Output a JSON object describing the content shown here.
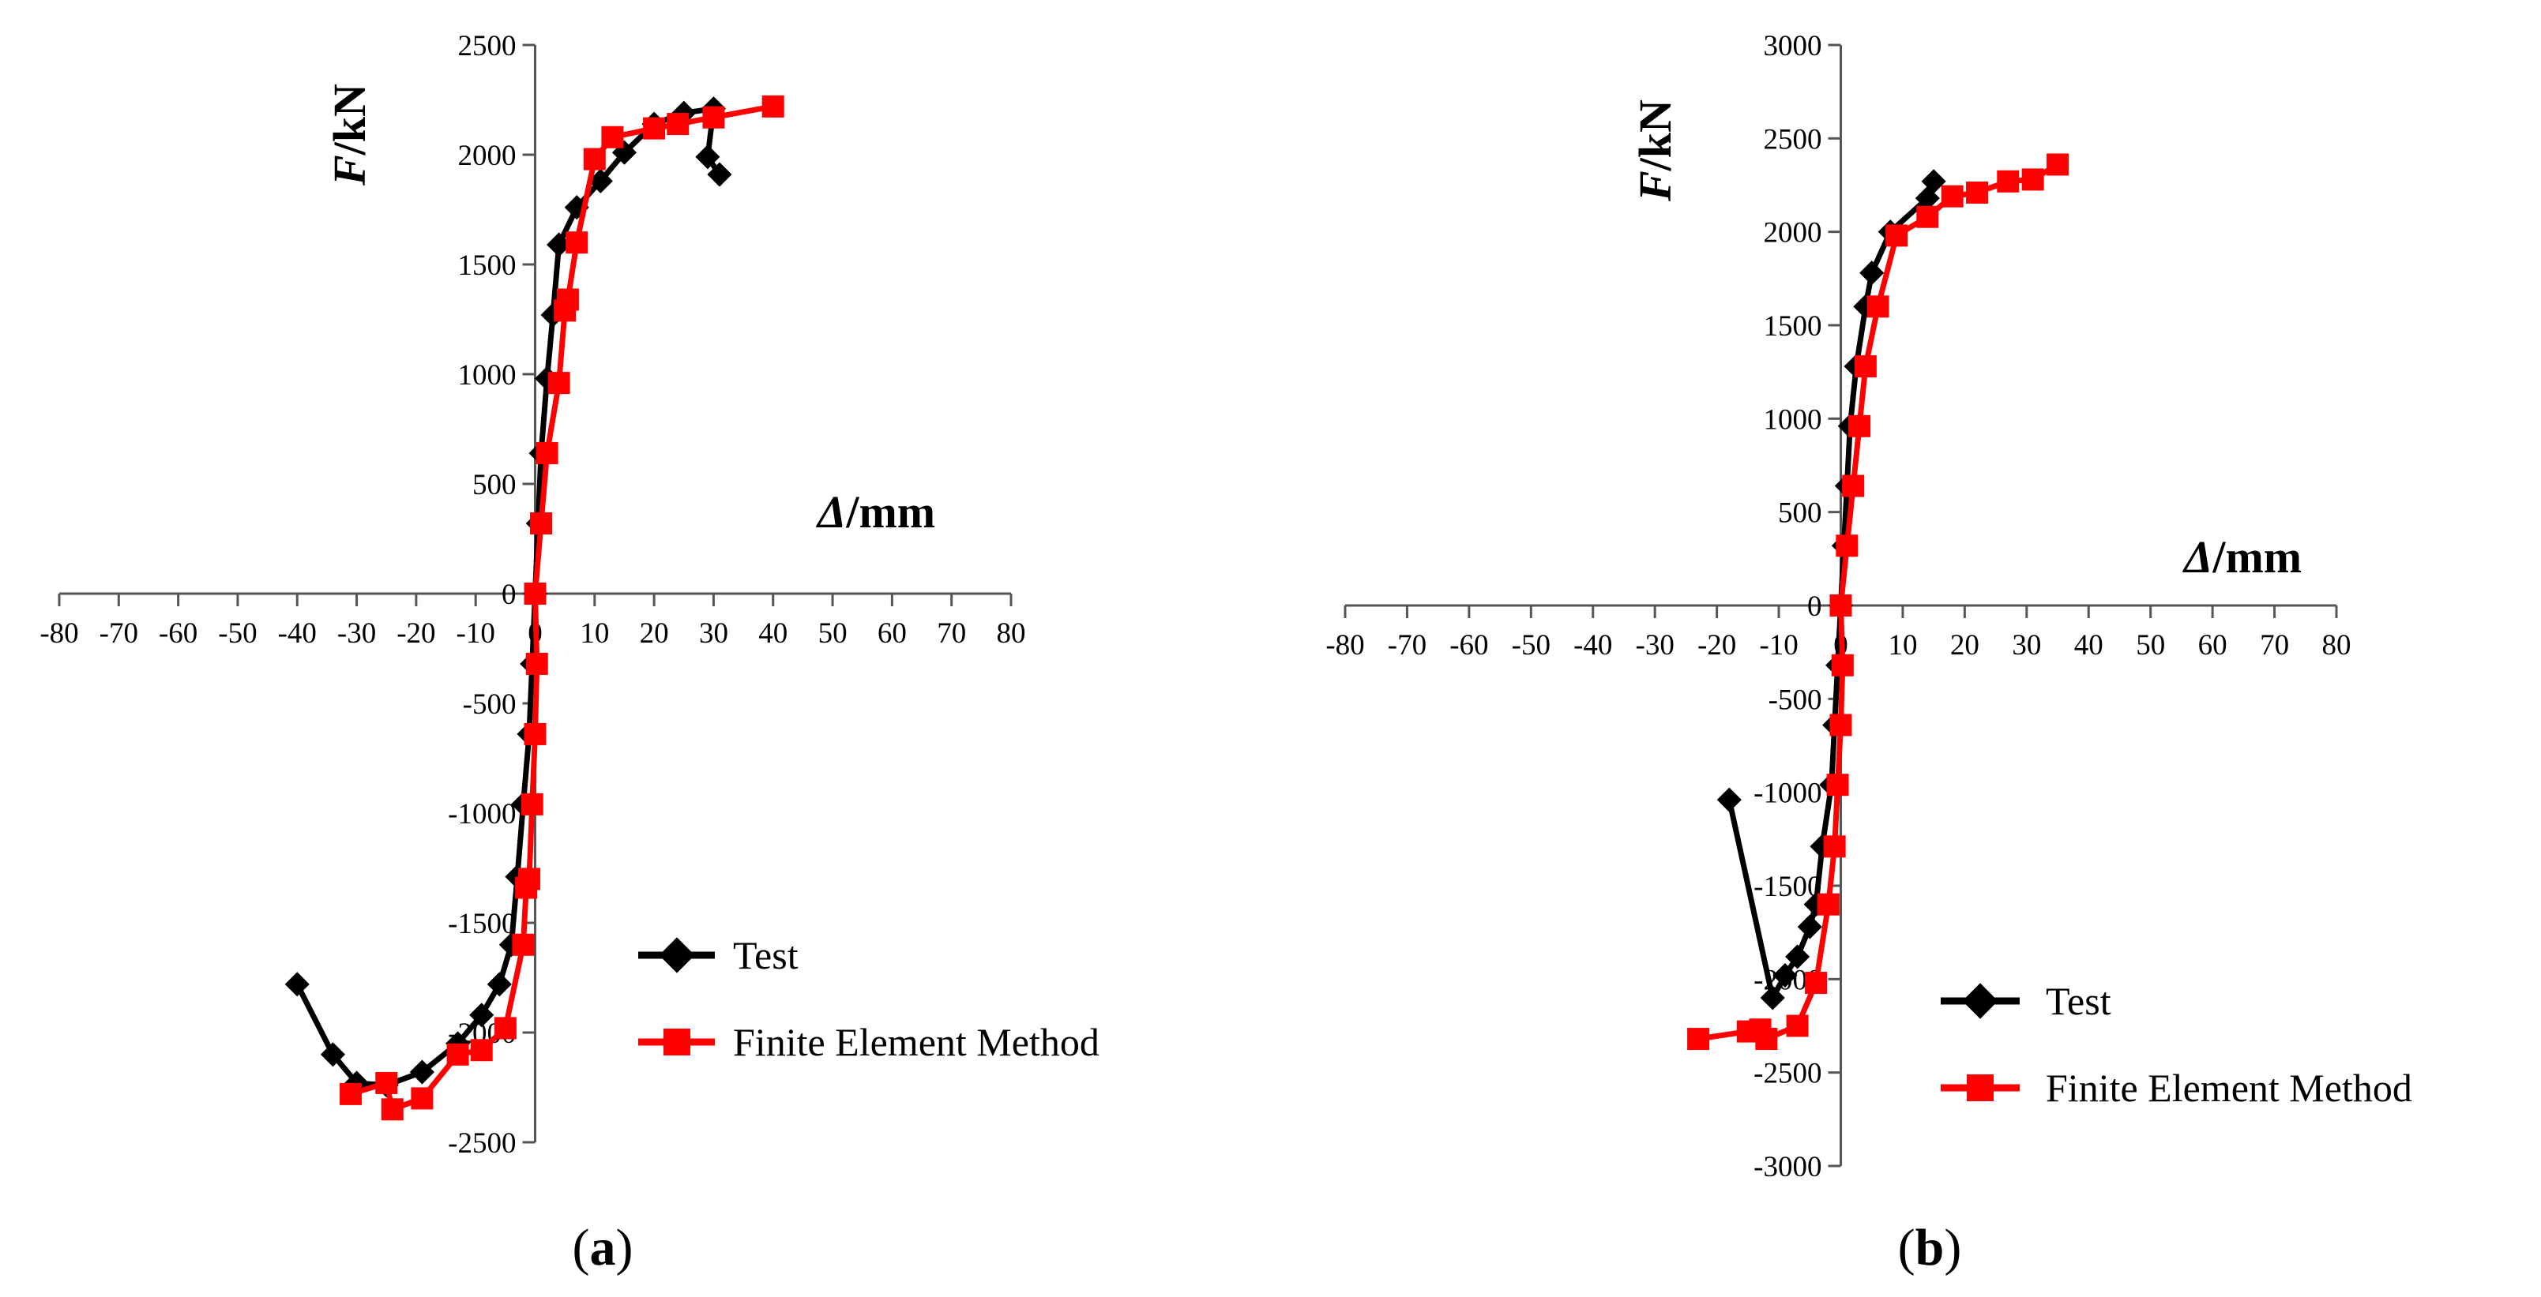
{
  "figure": {
    "panels": [
      {
        "caption_open": "(",
        "caption_letter": "a",
        "caption_close": ")"
      },
      {
        "caption_open": "(",
        "caption_letter": "b",
        "caption_close": ")"
      }
    ]
  },
  "chart_data": [
    {
      "type": "line",
      "title": "",
      "xlabel_symbol": "Δ",
      "xlabel_unit": "/mm",
      "ylabel_symbol": "F",
      "ylabel_unit": "/kN",
      "xlim": [
        -80,
        80
      ],
      "ylim": [
        -2500,
        2500
      ],
      "x_ticks": [
        -80,
        -70,
        -60,
        -50,
        -40,
        -30,
        -20,
        -10,
        0,
        10,
        20,
        30,
        40,
        50,
        60,
        70,
        80
      ],
      "y_ticks": [
        -2500,
        -2000,
        -1500,
        -1000,
        -500,
        0,
        500,
        1000,
        1500,
        2000,
        2500
      ],
      "legend_position": "bottom-right",
      "series": [
        {
          "name": "Test",
          "color": "#000000",
          "marker": "diamond",
          "points": [
            [
              31,
              1910
            ],
            [
              29,
              1990
            ],
            [
              30,
              2210
            ],
            [
              25,
              2190
            ],
            [
              20,
              2140
            ],
            [
              15,
              2010
            ],
            [
              11,
              1880
            ],
            [
              7,
              1760
            ],
            [
              4,
              1590
            ],
            [
              3,
              1270
            ],
            [
              2,
              980
            ],
            [
              1,
              640
            ],
            [
              0.5,
              320
            ],
            [
              0,
              0
            ],
            [
              -0.5,
              -320
            ],
            [
              -1,
              -640
            ],
            [
              -2,
              -960
            ],
            [
              -3,
              -1290
            ],
            [
              -4,
              -1600
            ],
            [
              -6,
              -1780
            ],
            [
              -9,
              -1920
            ],
            [
              -13,
              -2050
            ],
            [
              -19,
              -2180
            ],
            [
              -25,
              -2240
            ],
            [
              -30,
              -2230
            ],
            [
              -34,
              -2100
            ],
            [
              -40,
              -1780
            ]
          ]
        },
        {
          "name": "Finite Element Method",
          "color": "#ff0000",
          "marker": "square",
          "points": [
            [
              -31,
              -2280
            ],
            [
              -25,
              -2230
            ],
            [
              -24,
              -2350
            ],
            [
              -19,
              -2300
            ],
            [
              -13,
              -2100
            ],
            [
              -9,
              -2080
            ],
            [
              -5,
              -1980
            ],
            [
              -2,
              -1600
            ],
            [
              -1.5,
              -1340
            ],
            [
              -1,
              -1300
            ],
            [
              -0.5,
              -960
            ],
            [
              0,
              -640
            ],
            [
              0.3,
              -320
            ],
            [
              0,
              0
            ],
            [
              1,
              320
            ],
            [
              2,
              640
            ],
            [
              4,
              960
            ],
            [
              5,
              1290
            ],
            [
              5.5,
              1340
            ],
            [
              7,
              1600
            ],
            [
              10,
              1980
            ],
            [
              13,
              2080
            ],
            [
              20,
              2120
            ],
            [
              24,
              2140
            ],
            [
              30,
              2170
            ],
            [
              40,
              2220
            ]
          ]
        }
      ]
    },
    {
      "type": "line",
      "title": "",
      "xlabel_symbol": "Δ",
      "xlabel_unit": "/mm",
      "ylabel_symbol": "F",
      "ylabel_unit": "/kN",
      "xlim": [
        -80,
        80
      ],
      "ylim": [
        -3000,
        3000
      ],
      "x_ticks": [
        -80,
        -70,
        -60,
        -50,
        -40,
        -30,
        -20,
        -10,
        0,
        10,
        20,
        30,
        40,
        50,
        60,
        70,
        80
      ],
      "y_ticks": [
        -3000,
        -2500,
        -2000,
        -1500,
        -1000,
        -500,
        0,
        500,
        1000,
        1500,
        2000,
        2500,
        3000
      ],
      "legend_position": "bottom-right",
      "series": [
        {
          "name": "Test",
          "color": "#000000",
          "marker": "diamond",
          "points": [
            [
              15,
              2270
            ],
            [
              14,
              2180
            ],
            [
              8,
              2000
            ],
            [
              5,
              1780
            ],
            [
              4,
              1600
            ],
            [
              2.5,
              1280
            ],
            [
              1.5,
              960
            ],
            [
              1,
              640
            ],
            [
              0.5,
              320
            ],
            [
              0,
              0
            ],
            [
              -0.5,
              -320
            ],
            [
              -1,
              -640
            ],
            [
              -1.5,
              -960
            ],
            [
              -3,
              -1290
            ],
            [
              -4,
              -1600
            ],
            [
              -5,
              -1720
            ],
            [
              -7,
              -1880
            ],
            [
              -9,
              -1980
            ],
            [
              -11,
              -2100
            ],
            [
              -18,
              -1040
            ]
          ]
        },
        {
          "name": "Finite Element Method",
          "color": "#ff0000",
          "marker": "square",
          "points": [
            [
              -23,
              -2320
            ],
            [
              -15,
              -2280
            ],
            [
              -13,
              -2270
            ],
            [
              -12,
              -2320
            ],
            [
              -7,
              -2250
            ],
            [
              -4,
              -2020
            ],
            [
              -2,
              -1600
            ],
            [
              -1,
              -1290
            ],
            [
              -0.5,
              -960
            ],
            [
              0,
              -640
            ],
            [
              0.3,
              -320
            ],
            [
              0,
              0
            ],
            [
              1,
              320
            ],
            [
              2,
              640
            ],
            [
              3,
              960
            ],
            [
              4,
              1280
            ],
            [
              6,
              1600
            ],
            [
              9,
              1980
            ],
            [
              14,
              2080
            ],
            [
              18,
              2190
            ],
            [
              22,
              2210
            ],
            [
              27,
              2270
            ],
            [
              31,
              2280
            ],
            [
              35,
              2360
            ]
          ]
        }
      ]
    }
  ]
}
